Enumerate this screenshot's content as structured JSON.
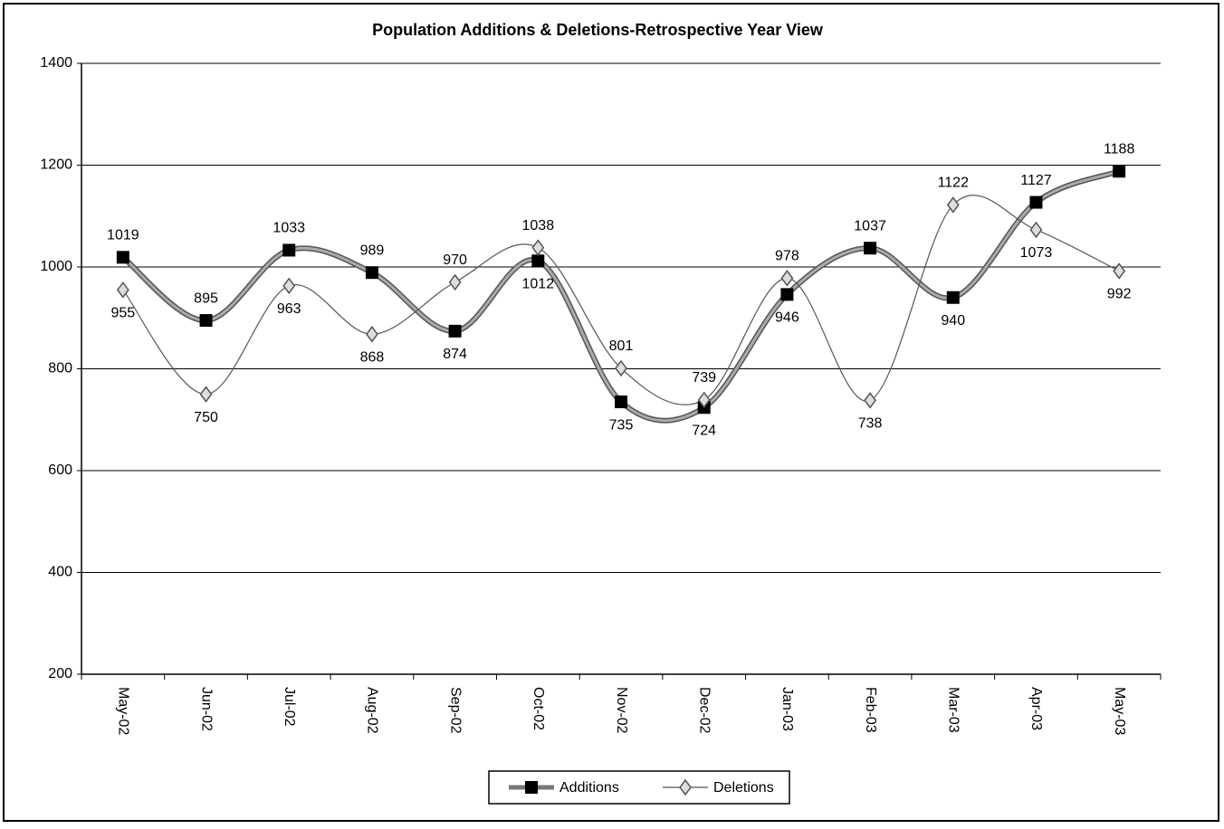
{
  "chart_data": {
    "type": "line",
    "title": "Population Additions & Deletions-Retrospective Year View",
    "categories": [
      "May-02",
      "Jun-02",
      "Jul-02",
      "Aug-02",
      "Sep-02",
      "Oct-02",
      "Nov-02",
      "Dec-02",
      "Jan-03",
      "Feb-03",
      "Mar-03",
      "Apr-03",
      "May-03"
    ],
    "series": [
      {
        "name": "Additions",
        "color": "#000000",
        "values": [
          1019,
          895,
          1033,
          989,
          874,
          1012,
          735,
          724,
          946,
          1037,
          940,
          1127,
          1188
        ]
      },
      {
        "name": "Deletions",
        "color": "#555555",
        "values": [
          955,
          750,
          963,
          868,
          970,
          1038,
          801,
          739,
          978,
          738,
          1122,
          1073,
          992
        ]
      }
    ],
    "ylim": [
      200,
      1400
    ],
    "yticks": [
      200,
      400,
      600,
      800,
      1000,
      1200,
      1400
    ],
    "grid": true,
    "legend": "bottom"
  }
}
